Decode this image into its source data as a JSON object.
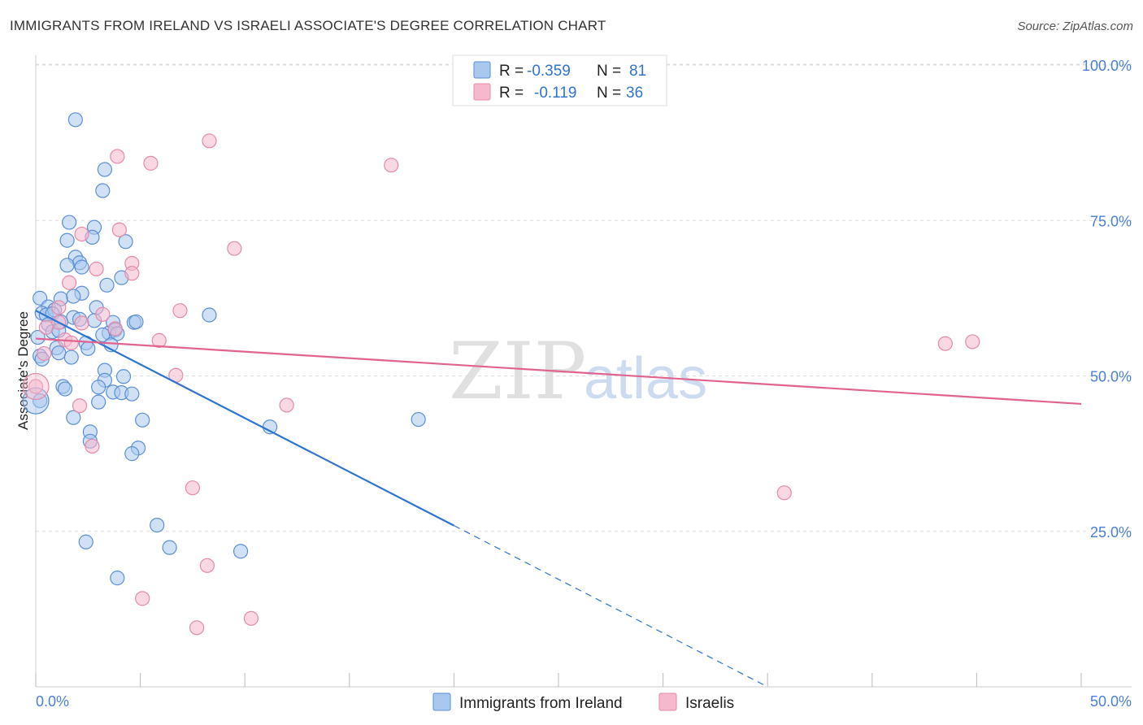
{
  "title": "IMMIGRANTS FROM IRELAND VS ISRAELI ASSOCIATE'S DEGREE CORRELATION CHART",
  "source": "Source: ZipAtlas.com",
  "watermark": {
    "part1": "ZIP",
    "part2": "atlas"
  },
  "colors": {
    "blue_fill": "#a9c8ef",
    "blue_stroke": "#5b8fd6",
    "blue_line": "#2f74d0",
    "pink_fill": "#f5b8cc",
    "pink_stroke": "#e58aa8",
    "pink_line": "#e0648f",
    "grid": "#dddddd",
    "tick_text": "#4a7fd4"
  },
  "chart_data": {
    "type": "scatter",
    "title": "IMMIGRANTS FROM IRELAND VS ISRAELI ASSOCIATE'S DEGREE CORRELATION CHART",
    "xlabel": "",
    "ylabel": "Associate's Degree",
    "xlim": [
      0,
      50
    ],
    "ylim": [
      0,
      100
    ],
    "x_tick_labels": [
      "0.0%",
      "50.0%"
    ],
    "y_ticks": [
      {
        "value": 100,
        "label": "100.0%"
      },
      {
        "value": 75,
        "label": "75.0%"
      },
      {
        "value": 50,
        "label": "50.0%"
      },
      {
        "value": 25,
        "label": "25.0%"
      }
    ],
    "legend": [
      {
        "series": "Immigrants from Ireland",
        "r_label": "R =",
        "r_value": "-0.359",
        "n_label": "N =",
        "n_value": "81"
      },
      {
        "series": "Israelis",
        "r_label": "R =",
        "r_value": "-0.119",
        "n_label": "N =",
        "n_value": "36"
      }
    ],
    "series": [
      {
        "name": "Immigrants from Ireland",
        "color": "blue",
        "trend": {
          "x_start": 0,
          "y_start": 60.5,
          "x_solid_end": 20,
          "x_end": 35,
          "y_end": 0
        },
        "points": [
          [
            1.9,
            91.2
          ],
          [
            3.3,
            83.2
          ],
          [
            3.2,
            79.8
          ],
          [
            1.6,
            74.7
          ],
          [
            2.8,
            73.9
          ],
          [
            2.7,
            72.3
          ],
          [
            1.5,
            71.8
          ],
          [
            4.3,
            71.6
          ],
          [
            1.9,
            69.1
          ],
          [
            2.1,
            68.2
          ],
          [
            1.5,
            67.8
          ],
          [
            2.2,
            67.5
          ],
          [
            4.1,
            65.8
          ],
          [
            3.4,
            64.6
          ],
          [
            0.2,
            62.5
          ],
          [
            2.2,
            63.3
          ],
          [
            1.2,
            62.4
          ],
          [
            1.8,
            62.8
          ],
          [
            0.6,
            61.1
          ],
          [
            0.3,
            60.1
          ],
          [
            0.5,
            59.8
          ],
          [
            0.9,
            60.6
          ],
          [
            0.8,
            60.0
          ],
          [
            2.9,
            61.0
          ],
          [
            8.3,
            59.8
          ],
          [
            1.8,
            59.4
          ],
          [
            2.1,
            59.1
          ],
          [
            1.2,
            58.7
          ],
          [
            2.8,
            58.9
          ],
          [
            3.7,
            58.6
          ],
          [
            4.7,
            58.6
          ],
          [
            4.8,
            58.7
          ],
          [
            0.6,
            58.3
          ],
          [
            0.8,
            57.1
          ],
          [
            1.1,
            57.3
          ],
          [
            3.5,
            56.9
          ],
          [
            3.2,
            56.6
          ],
          [
            3.8,
            57.4
          ],
          [
            3.9,
            56.8
          ],
          [
            2.4,
            55.3
          ],
          [
            0.1,
            56.2
          ],
          [
            3.6,
            55.0
          ],
          [
            2.5,
            54.4
          ],
          [
            1.0,
            54.5
          ],
          [
            1.1,
            53.7
          ],
          [
            1.7,
            53.0
          ],
          [
            0.2,
            53.2
          ],
          [
            0.3,
            52.7
          ],
          [
            3.3,
            50.9
          ],
          [
            4.2,
            49.9
          ],
          [
            3.3,
            49.3
          ],
          [
            1.3,
            48.3
          ],
          [
            3.0,
            48.2
          ],
          [
            1.4,
            47.9
          ],
          [
            3.7,
            47.4
          ],
          [
            4.1,
            47.3
          ],
          [
            4.6,
            47.1
          ],
          [
            0.2,
            46.0
          ],
          [
            3.0,
            45.8
          ],
          [
            1.8,
            43.3
          ],
          [
            5.1,
            42.9
          ],
          [
            11.2,
            41.8
          ],
          [
            18.3,
            43.0
          ],
          [
            2.6,
            41.0
          ],
          [
            2.6,
            39.5
          ],
          [
            4.9,
            38.4
          ],
          [
            4.6,
            37.5
          ],
          [
            5.8,
            26.0
          ],
          [
            6.4,
            22.4
          ],
          [
            9.8,
            21.8
          ],
          [
            2.4,
            23.3
          ],
          [
            3.9,
            17.5
          ]
        ]
      },
      {
        "name": "Israelis",
        "color": "pink",
        "trend": {
          "x_start": 0,
          "y_start": 56.0,
          "x_end": 50,
          "y_end": 45.5
        },
        "points": [
          [
            8.3,
            87.8
          ],
          [
            3.9,
            85.3
          ],
          [
            5.5,
            84.2
          ],
          [
            17.0,
            83.9
          ],
          [
            4.0,
            73.5
          ],
          [
            2.2,
            72.8
          ],
          [
            9.5,
            70.5
          ],
          [
            4.6,
            68.1
          ],
          [
            2.9,
            67.2
          ],
          [
            4.6,
            66.5
          ],
          [
            1.6,
            65.0
          ],
          [
            6.9,
            60.5
          ],
          [
            1.1,
            61.0
          ],
          [
            3.2,
            59.9
          ],
          [
            2.2,
            58.5
          ],
          [
            3.8,
            57.6
          ],
          [
            1.1,
            58.6
          ],
          [
            0.5,
            57.8
          ],
          [
            5.9,
            55.7
          ],
          [
            1.4,
            55.8
          ],
          [
            1.7,
            55.3
          ],
          [
            0.4,
            53.6
          ],
          [
            6.7,
            50.1
          ],
          [
            0.0,
            48.3
          ],
          [
            44.8,
            55.5
          ],
          [
            43.5,
            55.2
          ],
          [
            12.0,
            45.3
          ],
          [
            2.1,
            45.2
          ],
          [
            2.7,
            38.7
          ],
          [
            7.5,
            32.0
          ],
          [
            35.8,
            31.2
          ],
          [
            8.2,
            19.5
          ],
          [
            5.1,
            14.2
          ],
          [
            10.3,
            11.0
          ],
          [
            7.7,
            9.5
          ]
        ]
      }
    ]
  }
}
